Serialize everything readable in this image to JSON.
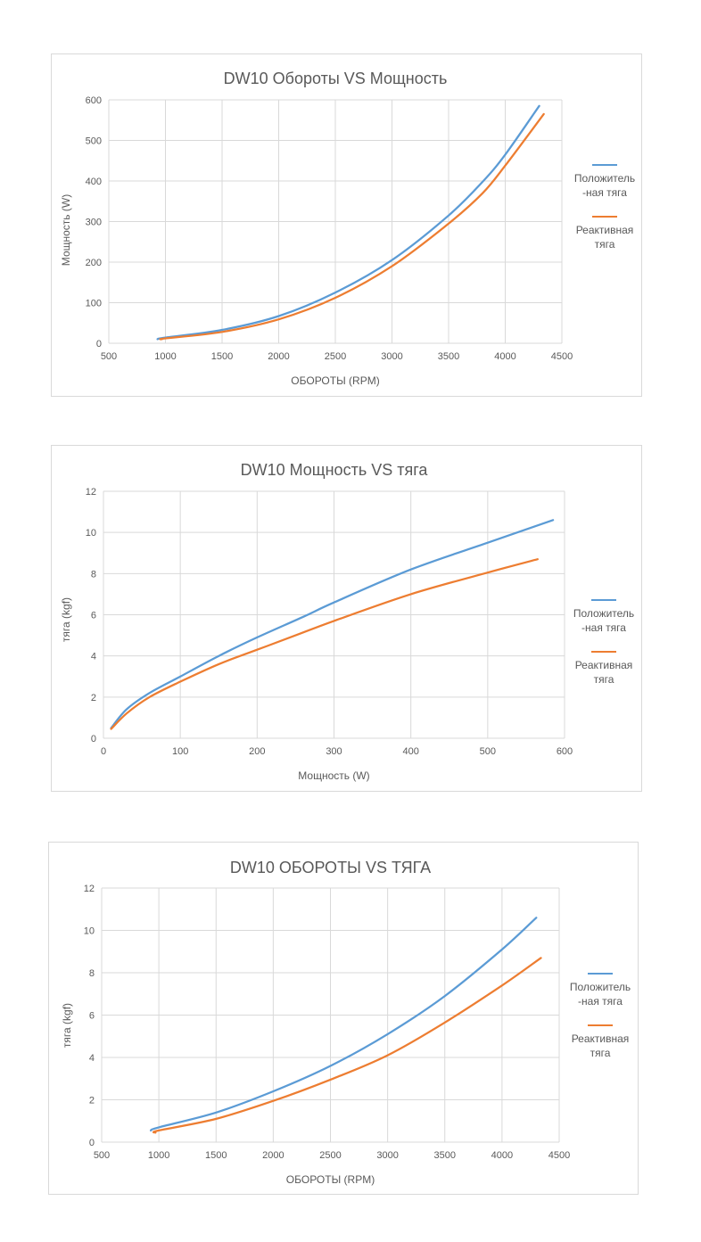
{
  "colors": {
    "positive": "#5b9bd5",
    "reactive": "#ed7d31",
    "grid": "#d9d9d9",
    "axis_text": "#595959"
  },
  "legend": {
    "positive": "Положитель\n-ная тяга",
    "reactive": "Реактивная\nтяга"
  },
  "chart_data": [
    {
      "type": "line",
      "title": "DW10 Обороты VS Мощность",
      "xlabel": "ОБОРОТЫ (RPM)",
      "ylabel": "Мощность (W)",
      "xlim": [
        500,
        4500
      ],
      "ylim": [
        0,
        600
      ],
      "xticks": [
        "500",
        "1000",
        "1500",
        "2000",
        "2500",
        "3000",
        "3500",
        "4000",
        "4500"
      ],
      "yticks": [
        "0",
        "100",
        "200",
        "300",
        "400",
        "500",
        "600"
      ],
      "grid": true,
      "legend_position": "right",
      "series": [
        {
          "name": "Положитель -ная тяга",
          "color": "#5b9bd5",
          "x": [
            930,
            1000,
            1500,
            2000,
            2500,
            3000,
            3500,
            3800,
            4000,
            4300
          ],
          "y": [
            10,
            14,
            33,
            67,
            125,
            205,
            315,
            398,
            465,
            585
          ]
        },
        {
          "name": "Реактивная тяга",
          "color": "#ed7d31",
          "x": [
            970,
            1000,
            1500,
            2000,
            2500,
            3000,
            3500,
            3800,
            4000,
            4340
          ],
          "y": [
            10,
            12,
            28,
            59,
            112,
            190,
            295,
            370,
            438,
            565
          ]
        }
      ]
    },
    {
      "type": "line",
      "title": "DW10 Мощность VS тяга",
      "xlabel": "Мощность (W)",
      "ylabel": "тяга (kgf)",
      "xlim": [
        0,
        600
      ],
      "ylim": [
        0,
        12
      ],
      "xticks": [
        "0",
        "100",
        "200",
        "300",
        "400",
        "500",
        "600"
      ],
      "yticks": [
        "0",
        "2",
        "4",
        "6",
        "8",
        "10",
        "12"
      ],
      "grid": true,
      "legend_position": "right",
      "series": [
        {
          "name": "Положитель -ная тяга",
          "color": "#5b9bd5",
          "x": [
            10,
            30,
            60,
            100,
            150,
            200,
            260,
            300,
            400,
            500,
            585
          ],
          "y": [
            0.5,
            1.4,
            2.2,
            3.0,
            4.0,
            4.9,
            5.9,
            6.6,
            8.2,
            9.5,
            10.6
          ]
        },
        {
          "name": "Реактивная тяга",
          "color": "#ed7d31",
          "x": [
            10,
            30,
            60,
            100,
            150,
            200,
            250,
            300,
            400,
            500,
            565
          ],
          "y": [
            0.45,
            1.2,
            2.0,
            2.75,
            3.6,
            4.3,
            5.0,
            5.7,
            7.0,
            8.05,
            8.7
          ]
        }
      ]
    },
    {
      "type": "line",
      "title": "DW10 ОБОРОТЫ VS ТЯГА",
      "xlabel": "ОБОРОТЫ (RPM)",
      "ylabel": "тяга (kgf)",
      "xlim": [
        500,
        4500
      ],
      "ylim": [
        0,
        12
      ],
      "xticks": [
        "500",
        "1000",
        "1500",
        "2000",
        "2500",
        "3000",
        "3500",
        "4000",
        "4500"
      ],
      "yticks": [
        "0",
        "2",
        "4",
        "6",
        "8",
        "10",
        "12"
      ],
      "grid": true,
      "legend_position": "right",
      "series": [
        {
          "name": "Положитель -ная тяга",
          "color": "#5b9bd5",
          "x": [
            930,
            1000,
            1500,
            2000,
            2500,
            3000,
            3500,
            4000,
            4300
          ],
          "y": [
            0.55,
            0.7,
            1.4,
            2.4,
            3.6,
            5.1,
            6.9,
            9.1,
            10.6
          ]
        },
        {
          "name": "Реактивная тяга",
          "color": "#ed7d31",
          "x": [
            970,
            1000,
            1500,
            2000,
            2500,
            3000,
            3500,
            4000,
            4340
          ],
          "y": [
            0.45,
            0.55,
            1.1,
            1.95,
            2.95,
            4.1,
            5.65,
            7.4,
            8.7
          ]
        }
      ]
    }
  ]
}
